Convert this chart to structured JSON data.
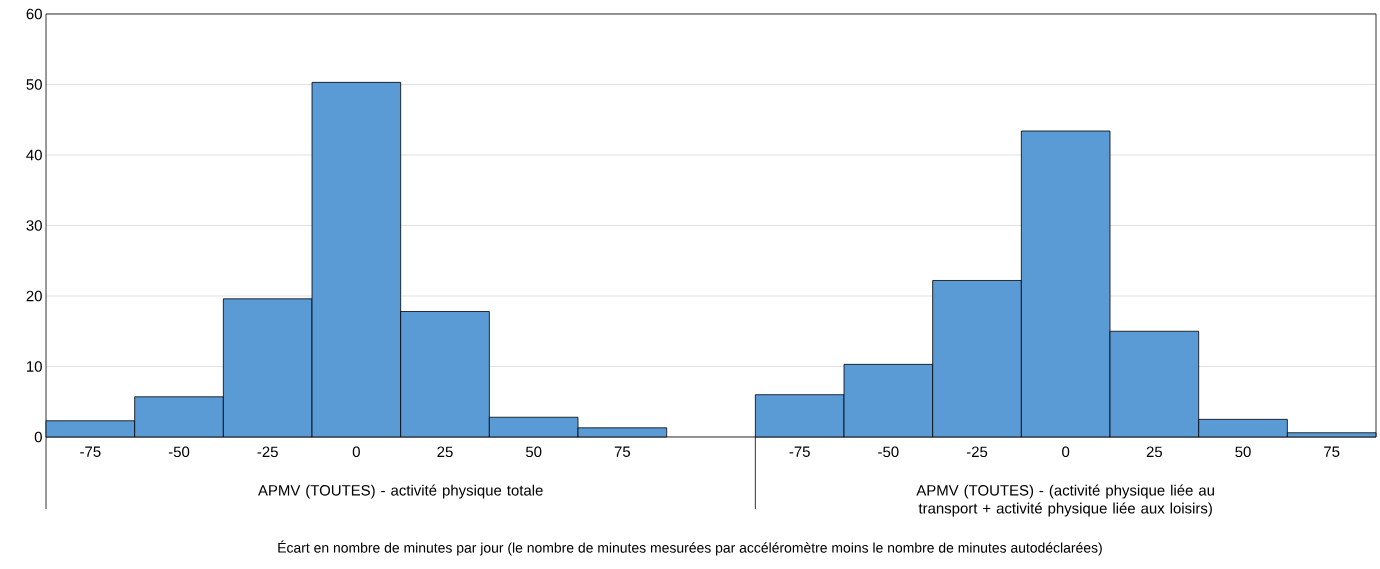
{
  "chart_data": {
    "type": "bar",
    "categories": [
      "-75",
      "-50",
      "-25",
      "0",
      "25",
      "50",
      "75",
      null,
      "-75",
      "-50",
      "-25",
      "0",
      "25",
      "50",
      "75"
    ],
    "values": [
      2.3,
      5.7,
      19.6,
      50.3,
      17.8,
      2.8,
      1.3,
      null,
      6.0,
      10.3,
      22.2,
      43.4,
      15.0,
      2.5,
      0.6
    ],
    "color": "#5b9bd5",
    "ylim": [
      0,
      60
    ],
    "yticks": [
      0,
      10,
      20,
      30,
      40,
      50,
      60
    ],
    "grid": "y",
    "annotations": [
      "APMV (TOUTES) - activité physique totale",
      "APMV (TOUTES) - (activité physique liée au transport + activité physique liée aux loisirs)",
      "Écart en nombre de minutes par jour (le nombre de minutes mesurées par accéléromètre moins le nombre de minutes autodéclarées)"
    ]
  }
}
